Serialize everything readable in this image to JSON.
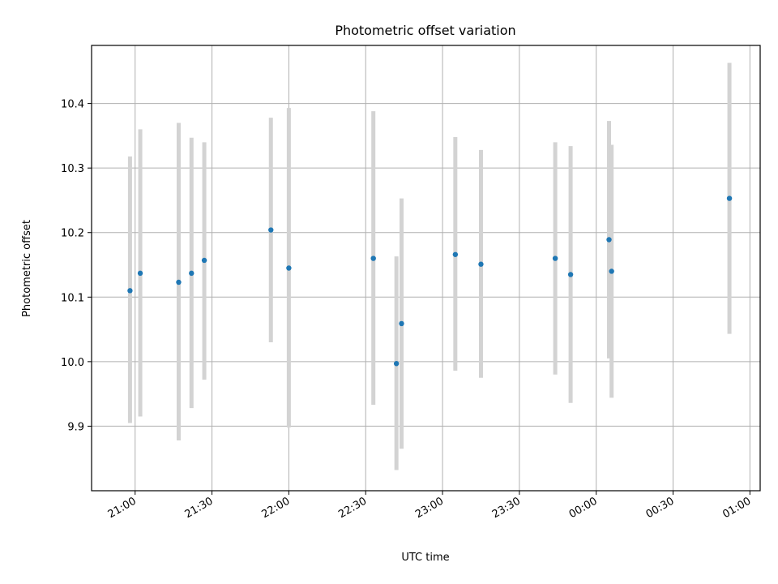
{
  "chart_data": {
    "type": "scatter",
    "title": "Photometric offset variation",
    "xlabel": "UTC time",
    "ylabel": "Photometric offset",
    "x_ticks": [
      "21:00",
      "21:30",
      "22:00",
      "22:30",
      "23:00",
      "23:30",
      "00:00",
      "00:30",
      "01:00"
    ],
    "y_ticks": [
      "9.9",
      "10.0",
      "10.1",
      "10.2",
      "10.3",
      "10.4"
    ],
    "xlim": [
      "20:43",
      "01:04"
    ],
    "ylim": [
      9.8,
      10.49
    ],
    "grid": true,
    "colors": {
      "point": "#1f77b4",
      "errorbar": "#d3d3d3",
      "grid": "#b0b0b0"
    },
    "series": [
      {
        "points": [
          {
            "x": "20:58",
            "y": 10.11,
            "ylow": 9.905,
            "yhigh": 10.318
          },
          {
            "x": "21:02",
            "y": 10.137,
            "ylow": 9.915,
            "yhigh": 10.36
          },
          {
            "x": "21:17",
            "y": 10.123,
            "ylow": 9.878,
            "yhigh": 10.37
          },
          {
            "x": "21:22",
            "y": 10.137,
            "ylow": 9.928,
            "yhigh": 10.347
          },
          {
            "x": "21:27",
            "y": 10.157,
            "ylow": 9.972,
            "yhigh": 10.34
          },
          {
            "x": "21:53",
            "y": 10.204,
            "ylow": 10.03,
            "yhigh": 10.378
          },
          {
            "x": "22:00",
            "y": 10.145,
            "ylow": 9.898,
            "yhigh": 10.393
          },
          {
            "x": "22:33",
            "y": 10.16,
            "ylow": 9.933,
            "yhigh": 10.388
          },
          {
            "x": "22:42",
            "y": 9.997,
            "ylow": 9.832,
            "yhigh": 10.163
          },
          {
            "x": "22:44",
            "y": 10.059,
            "ylow": 9.865,
            "yhigh": 10.253
          },
          {
            "x": "23:05",
            "y": 10.166,
            "ylow": 9.986,
            "yhigh": 10.348
          },
          {
            "x": "23:15",
            "y": 10.151,
            "ylow": 9.975,
            "yhigh": 10.328
          },
          {
            "x": "23:44",
            "y": 10.16,
            "ylow": 9.98,
            "yhigh": 10.34
          },
          {
            "x": "23:50",
            "y": 10.135,
            "ylow": 9.936,
            "yhigh": 10.334
          },
          {
            "x": "00:05",
            "y": 10.189,
            "ylow": 10.005,
            "yhigh": 10.373
          },
          {
            "x": "00:06",
            "y": 10.14,
            "ylow": 9.944,
            "yhigh": 10.336
          },
          {
            "x": "00:52",
            "y": 10.253,
            "ylow": 10.043,
            "yhigh": 10.463
          }
        ]
      }
    ]
  }
}
